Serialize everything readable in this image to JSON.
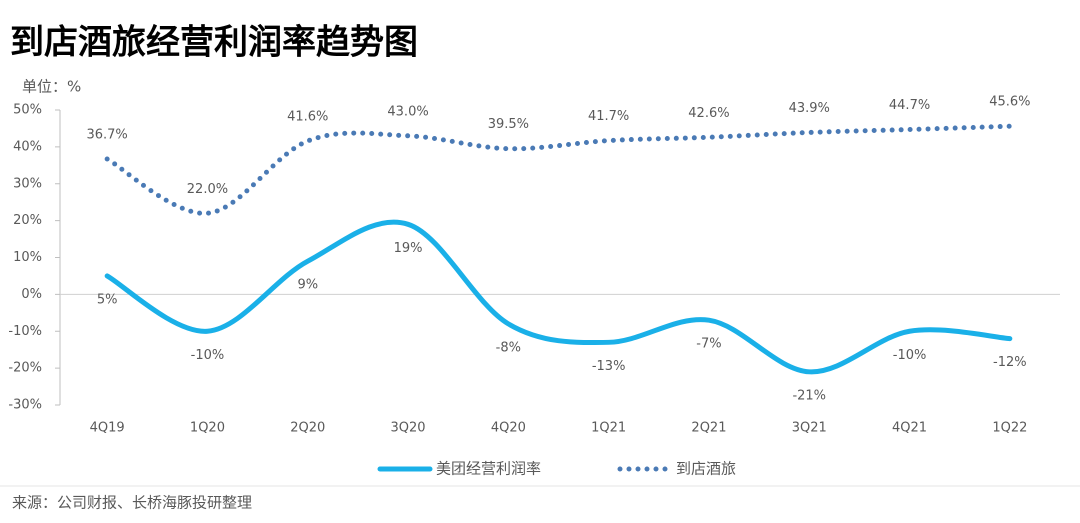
{
  "chart_data": {
    "type": "line",
    "title": "到店酒旅经营利润率趋势图",
    "unit_label": "单位：%",
    "source": "来源：公司财报、长桥海豚投研整理",
    "categories": [
      "4Q19",
      "1Q20",
      "2Q20",
      "3Q20",
      "4Q20",
      "1Q21",
      "2Q21",
      "3Q21",
      "4Q21",
      "1Q22"
    ],
    "series": [
      {
        "name": "美团经营利润率",
        "color": "#1ab0e8",
        "style": "solid",
        "values": [
          5,
          -10,
          9,
          19,
          -8,
          -13,
          -7,
          -21,
          -10,
          -12
        ],
        "value_labels": [
          "5%",
          "-10%",
          "9%",
          "19%",
          "-8%",
          "-13%",
          "-7%",
          "-21%",
          "-10%",
          "-12%"
        ]
      },
      {
        "name": "到店酒旅",
        "color": "#4a7ab5",
        "style": "dotted",
        "values": [
          36.7,
          22.0,
          41.6,
          43.0,
          39.5,
          41.7,
          42.6,
          43.9,
          44.7,
          45.6
        ],
        "value_labels": [
          "36.7%",
          "22.0%",
          "41.6%",
          "43.0%",
          "39.5%",
          "41.7%",
          "42.6%",
          "43.9%",
          "44.7%",
          "45.6%"
        ]
      }
    ],
    "ylim": [
      -30,
      50
    ],
    "yticks": [
      {
        "value": -30,
        "label": "-30%"
      },
      {
        "value": -20,
        "label": "-20%"
      },
      {
        "value": -10,
        "label": "-10%"
      },
      {
        "value": 0,
        "label": "0%"
      },
      {
        "value": 10,
        "label": "10%"
      },
      {
        "value": 20,
        "label": "20%"
      },
      {
        "value": 30,
        "label": "30%"
      },
      {
        "value": 40,
        "label": "40%"
      },
      {
        "value": 50,
        "label": "50%"
      }
    ],
    "legend": "bottom"
  }
}
